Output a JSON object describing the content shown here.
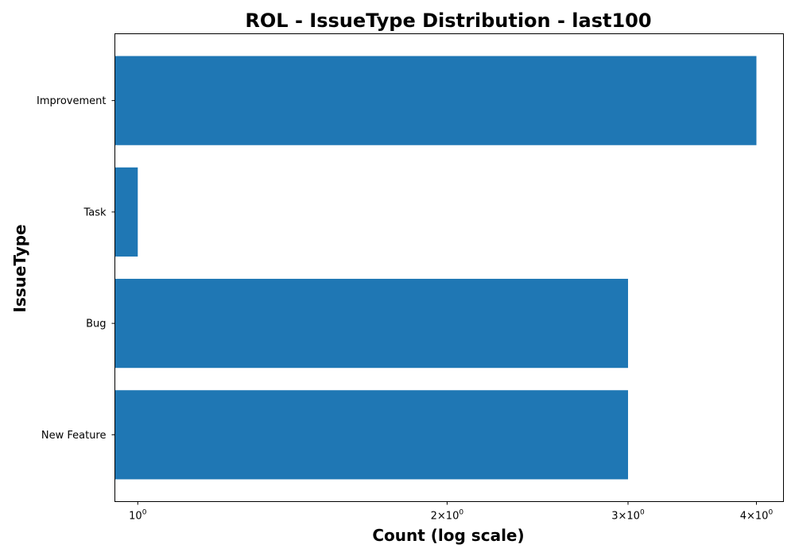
{
  "chart_data": {
    "type": "bar",
    "orientation": "horizontal",
    "title": "ROL - IssueType Distribution - last100",
    "xlabel": "Count (log scale)",
    "ylabel": "IssueType",
    "x_scale": "log",
    "xlim": [
      0.95,
      4.25
    ],
    "categories": [
      "Improvement",
      "Task",
      "Bug",
      "New Feature"
    ],
    "values": [
      4,
      1,
      3,
      3
    ],
    "x_ticks": [
      {
        "value": 1,
        "base": "10",
        "exp": "0"
      },
      {
        "value": 2,
        "base": "2×10",
        "exp": "0"
      },
      {
        "value": 3,
        "base": "3×10",
        "exp": "0"
      },
      {
        "value": 4,
        "base": "4×10",
        "exp": "0"
      }
    ],
    "bar_color": "#1f77b4",
    "grid": false,
    "legend": "none"
  }
}
